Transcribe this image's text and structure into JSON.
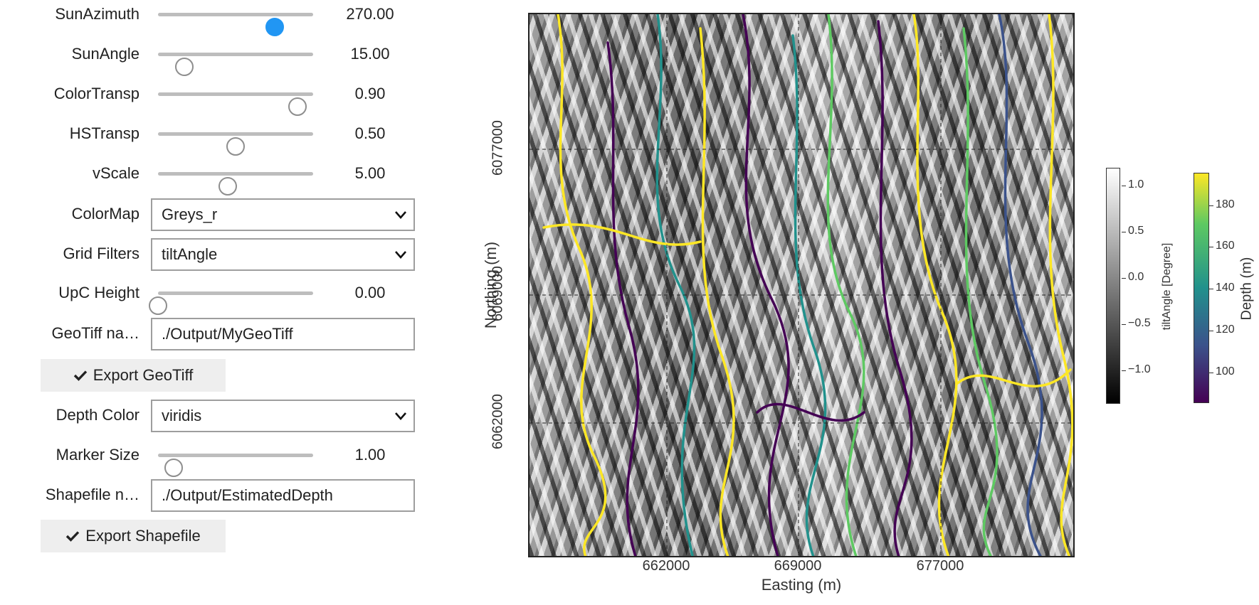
{
  "widgets": {
    "sun_azimuth": {
      "label": "SunAzimuth",
      "value": "270.00",
      "fraction": 0.75
    },
    "sun_angle": {
      "label": "SunAngle",
      "value": "15.00",
      "fraction": 0.17
    },
    "color_transp": {
      "label": "ColorTransp",
      "value": "0.90",
      "fraction": 0.9
    },
    "hs_transp": {
      "label": "HSTransp",
      "value": "0.50",
      "fraction": 0.5
    },
    "v_scale": {
      "label": "vScale",
      "value": "5.00",
      "fraction": 0.45
    },
    "colormap": {
      "label": "ColorMap",
      "value": "Greys_r"
    },
    "grid_filters": {
      "label": "Grid Filters",
      "value": "tiltAngle"
    },
    "upc_height": {
      "label": "UpC Height",
      "value": "0.00",
      "fraction": 0.0
    },
    "geotiff_name": {
      "label": "GeoTiff na…",
      "value": "./Output/MyGeoTiff"
    },
    "export_geotiff": {
      "label": "Export GeoTiff"
    },
    "depth_color": {
      "label": "Depth Color",
      "value": "viridis"
    },
    "marker_size": {
      "label": "Marker Size",
      "value": "1.00",
      "fraction": 0.1
    },
    "shapefile_name": {
      "label": "Shapefile n…",
      "value": "./Output/EstimatedDepth"
    },
    "export_shapefile": {
      "label": "Export Shapefile"
    }
  },
  "colors": {
    "slider_active": "#2196f3",
    "viridis_high": "#fde725",
    "viridis_low": "#440154"
  },
  "map": {
    "xlabel": "Easting (m)",
    "ylabel": "Northing (m)",
    "x_ticks": [
      "662000",
      "669000",
      "677000"
    ],
    "y_ticks": [
      "6077000",
      "6069000",
      "6062000"
    ],
    "grid": true
  },
  "colorbar_tilt": {
    "label": "tiltAngle [Degree]",
    "ticks": [
      "1.0",
      "0.5",
      "0.0",
      "−0.5",
      "−1.0"
    ],
    "colormap": "Greys_r"
  },
  "colorbar_depth": {
    "label": "Depth (m)",
    "ticks": [
      "180",
      "160",
      "140",
      "120",
      "100"
    ],
    "colormap": "viridis"
  }
}
